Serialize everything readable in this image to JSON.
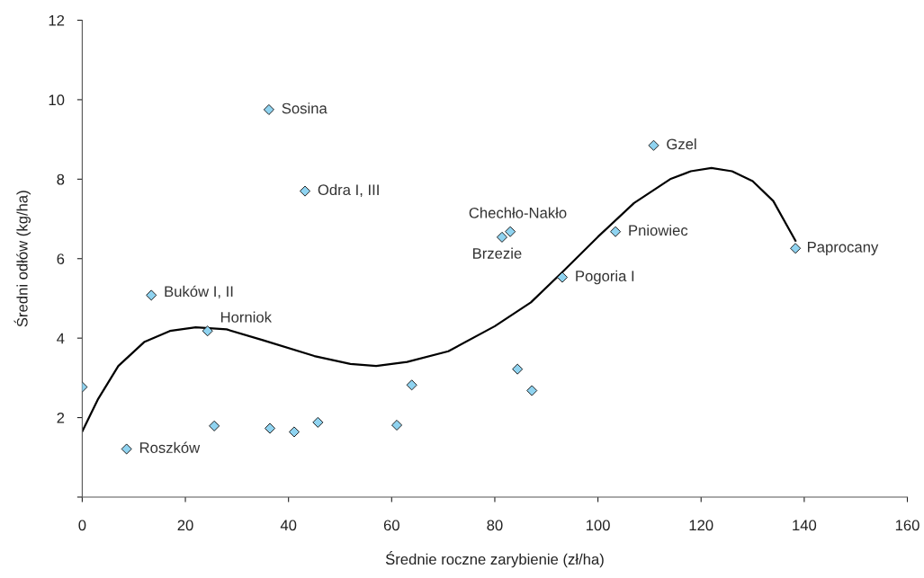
{
  "chart_data": {
    "type": "scatter",
    "xlabel": "Średnie roczne zarybienie (zł/ha)",
    "ylabel": "Średni odłów (kg/ha)",
    "xlim": [
      0,
      160
    ],
    "xticks": [
      0,
      20,
      40,
      60,
      80,
      100,
      120,
      140,
      160
    ],
    "ylim": [
      0,
      12
    ],
    "yticks": [
      {
        "value": 0,
        "label": null
      },
      2,
      4,
      6,
      8,
      10,
      12
    ],
    "grid": false,
    "legend": false,
    "marker": "diamond",
    "series": [
      {
        "color": "#8fd3f0",
        "x": [
          0.0,
          8.6,
          13.4,
          24.3,
          25.6,
          36.4,
          41.1,
          45.7,
          61.0,
          63.9,
          84.4,
          87.2,
          93.1,
          36.2,
          43.2,
          110.8,
          83.0,
          81.4,
          103.4,
          138.3
        ],
        "values": [
          2.77,
          1.21,
          5.08,
          4.18,
          1.79,
          1.73,
          1.64,
          1.88,
          1.81,
          2.82,
          3.22,
          2.68,
          5.53,
          9.75,
          7.7,
          8.85,
          6.68,
          6.54,
          6.68,
          6.26
        ]
      },
      {
        "type": "line",
        "color": "#000000",
        "marker": "none",
        "line_style": "solid",
        "x": [
          0,
          3,
          7,
          12,
          17,
          22,
          28,
          35,
          45,
          52,
          57,
          63,
          71,
          80,
          87,
          93,
          100,
          107,
          114,
          118,
          122,
          126,
          130,
          134,
          138.3
        ],
        "values": [
          1.65,
          2.45,
          3.3,
          3.9,
          4.18,
          4.27,
          4.22,
          3.95,
          3.55,
          3.35,
          3.3,
          3.4,
          3.67,
          4.3,
          4.9,
          5.65,
          6.55,
          7.4,
          8.0,
          8.2,
          8.28,
          8.2,
          7.95,
          7.45,
          6.45
        ]
      }
    ],
    "annotations": [
      {
        "text": "Sosina",
        "x": 36.2,
        "y": 9.75
      },
      {
        "text": "Odra I, III",
        "x": 43.2,
        "y": 7.7
      },
      {
        "text": "Buków I, II",
        "x": 13.4,
        "y": 5.08
      },
      {
        "text": "Horniok",
        "x": 24.3,
        "y": 4.18
      },
      {
        "text": "Roszków",
        "x": 8.6,
        "y": 1.21
      },
      {
        "text": "Chechło-Nakło",
        "x": 83.0,
        "y": 6.68
      },
      {
        "text": "Brzezie",
        "x": 81.4,
        "y": 6.54
      },
      {
        "text": "Gzel",
        "x": 110.8,
        "y": 8.85
      },
      {
        "text": "Pniowiec",
        "x": 103.4,
        "y": 6.68
      },
      {
        "text": "Pogoria I",
        "x": 93.1,
        "y": 5.53
      },
      {
        "text": "Paprocany",
        "x": 138.3,
        "y": 6.26
      }
    ]
  }
}
